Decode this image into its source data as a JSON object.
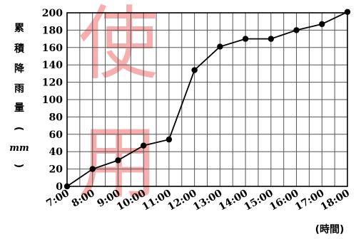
{
  "chart_data": {
    "type": "line",
    "categories": [
      "7:00",
      "8:00",
      "9:00",
      "10:00",
      "11:00",
      "12:00",
      "13:00",
      "14:00",
      "15:00",
      "16:00",
      "17:00",
      "18:00"
    ],
    "values": [
      0,
      20,
      30,
      47,
      54,
      134,
      161,
      170,
      170,
      180,
      187,
      201
    ],
    "ylim": [
      0,
      200
    ],
    "y_ticks": [
      0,
      20,
      40,
      60,
      80,
      100,
      120,
      140,
      160,
      180,
      200
    ],
    "ylabel_chars": [
      "累",
      "積",
      "降",
      "雨",
      "量",
      "(",
      "mm",
      ")"
    ],
    "xlabel": "(時間)",
    "grid": true,
    "x_minor_divisions": 2,
    "colors": {
      "line": "#000000",
      "marker": "#000000",
      "grid": "#555555",
      "watermark": "#f26d6d"
    }
  },
  "watermark": {
    "chars": [
      "使",
      "用"
    ]
  }
}
